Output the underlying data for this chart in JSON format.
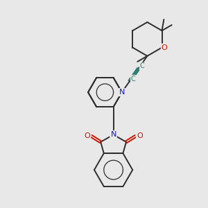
{
  "bg_color": "#e8e8e8",
  "bond_color": "#2d2d2d",
  "N_color": "#1414cc",
  "O_color": "#cc1400",
  "C_triple_color": "#2a7a6a",
  "lw": 1.4,
  "fig_size": [
    3.0,
    3.0
  ],
  "dpi": 100,
  "xlim": [
    0,
    10
  ],
  "ylim": [
    0,
    10
  ]
}
